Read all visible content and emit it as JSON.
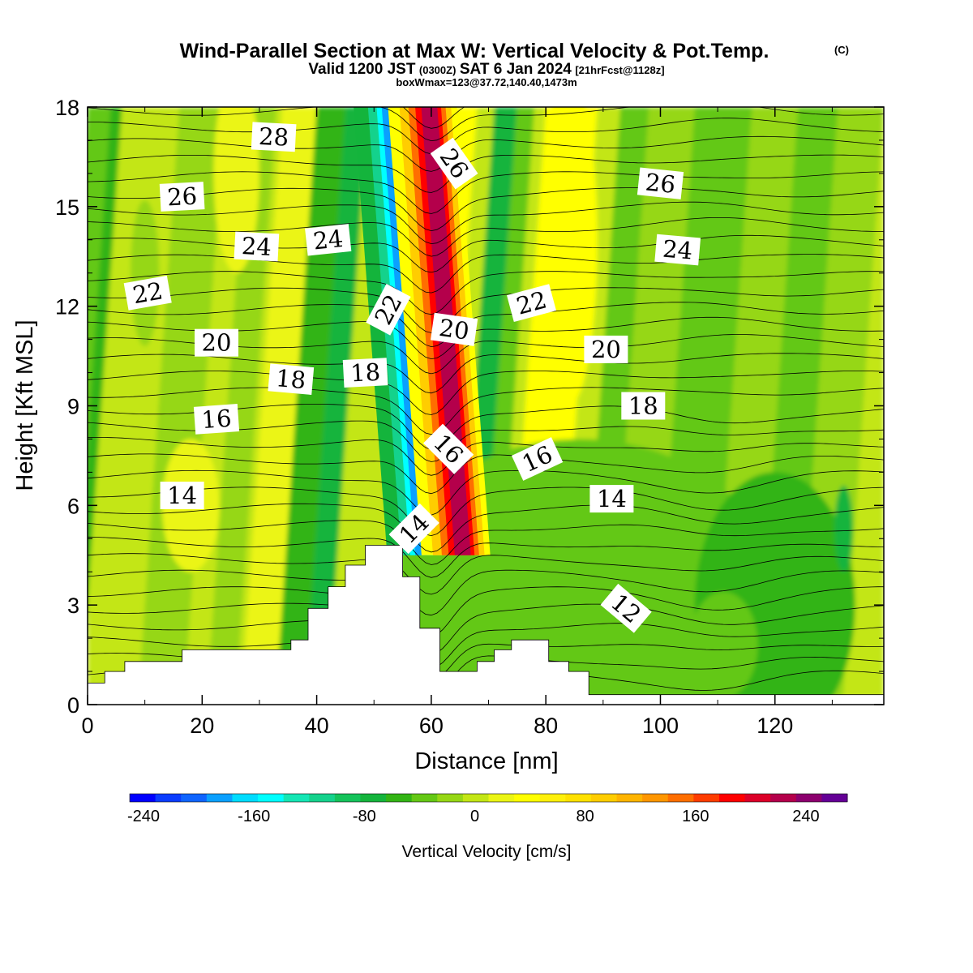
{
  "header": {
    "title": "Wind-Parallel Section at Max W: Vertical Velocity & Pot.Temp.",
    "copyright": "(C)",
    "valid_prefix": "Valid 1200 JST",
    "valid_utc": "(0300Z)",
    "valid_date": "SAT 6 Jan 2024",
    "forecast": "[21hrFcst@1128z]",
    "boxinfo": "boxWmax=123@37.72,140.40,1473m"
  },
  "colorbar": {
    "label": "Vertical Velocity [cm/s]",
    "tick_labels": [
      "-240",
      "-160",
      "-80",
      "0",
      "80",
      "160",
      "240"
    ],
    "tick_values": [
      -240,
      -160,
      -80,
      0,
      80,
      160,
      240
    ],
    "min": -250,
    "max": 270,
    "step": 20,
    "colors": [
      "#0000ff",
      "#0a3cff",
      "#0f64ff",
      "#0aa0ff",
      "#00dcff",
      "#00ffff",
      "#14e6b4",
      "#14d28c",
      "#14c35a",
      "#14b43c",
      "#32b414",
      "#64c814",
      "#96d714",
      "#c3e614",
      "#ebf514",
      "#ffff00",
      "#fff00a",
      "#ffe100",
      "#ffcd00",
      "#ffb400",
      "#ff9600",
      "#ff6e00",
      "#ff3c00",
      "#ff0000",
      "#dc0028",
      "#b4004b",
      "#8c006e",
      "#640096"
    ]
  },
  "chart_data": {
    "type": "heatmap",
    "title": "Wind-Parallel Section at Max W: Vertical Velocity & Pot.Temp.",
    "xlabel": "Distance [nm]",
    "ylabel": "Height [Kft MSL]",
    "xlim": [
      0,
      139
    ],
    "ylim": [
      0,
      18
    ],
    "x_ticks": [
      0,
      20,
      40,
      60,
      80,
      100,
      120
    ],
    "y_ticks": [
      0,
      3,
      6,
      9,
      12,
      15,
      18
    ],
    "shading_variable": "Vertical Velocity [cm/s]",
    "contour_variable": "Potential temperature",
    "vertical_velocity_features": [
      {
        "kind": "downdraft",
        "center_x": 55,
        "min_value": -180
      },
      {
        "kind": "updraft",
        "center_x": 62,
        "max_value": 250
      },
      {
        "kind": "updraft",
        "center_x": 66,
        "max_value": 60
      },
      {
        "kind": "downdraft",
        "center_x": 73,
        "min_value": -60
      },
      {
        "kind": "updraft",
        "center_x": 85,
        "max_value": 60
      }
    ],
    "contour_labels": [
      {
        "text": "28",
        "x": 32.5,
        "y": 17.1,
        "angle": -3
      },
      {
        "text": "26",
        "x": 16.5,
        "y": 15.3,
        "angle": 3
      },
      {
        "text": "26",
        "x": 64,
        "y": 16.3,
        "angle": -55
      },
      {
        "text": "26",
        "x": 100,
        "y": 15.7,
        "angle": -6
      },
      {
        "text": "24",
        "x": 29.5,
        "y": 13.8,
        "angle": -3
      },
      {
        "text": "24",
        "x": 42,
        "y": 14.0,
        "angle": 6
      },
      {
        "text": "24",
        "x": 103,
        "y": 13.7,
        "angle": -5
      },
      {
        "text": "22",
        "x": 10.5,
        "y": 12.4,
        "angle": 10
      },
      {
        "text": "22",
        "x": 52.5,
        "y": 11.9,
        "angle": 62
      },
      {
        "text": "22",
        "x": 77.5,
        "y": 12.1,
        "angle": 15
      },
      {
        "text": "20",
        "x": 22.5,
        "y": 10.9,
        "angle": 0
      },
      {
        "text": "20",
        "x": 64,
        "y": 11.3,
        "angle": -8
      },
      {
        "text": "20",
        "x": 90.5,
        "y": 10.7,
        "angle": 0
      },
      {
        "text": "18",
        "x": 35.5,
        "y": 9.8,
        "angle": -5
      },
      {
        "text": "18",
        "x": 48.5,
        "y": 10.0,
        "angle": 3
      },
      {
        "text": "18",
        "x": 97,
        "y": 9.0,
        "angle": 0
      },
      {
        "text": "16",
        "x": 22.5,
        "y": 8.6,
        "angle": 4
      },
      {
        "text": "16",
        "x": 63,
        "y": 7.7,
        "angle": -45
      },
      {
        "text": "16",
        "x": 78.5,
        "y": 7.4,
        "angle": 25
      },
      {
        "text": "14",
        "x": 16.5,
        "y": 6.3,
        "angle": 0
      },
      {
        "text": "14",
        "x": 57,
        "y": 5.3,
        "angle": 45
      },
      {
        "text": "14",
        "x": 91.5,
        "y": 6.2,
        "angle": 0
      },
      {
        "text": "12",
        "x": 94,
        "y": 2.9,
        "angle": -40
      }
    ],
    "terrain": [
      [
        0,
        0.65
      ],
      [
        3,
        0.65
      ],
      [
        3,
        1.0
      ],
      [
        6.5,
        1.0
      ],
      [
        6.5,
        1.3
      ],
      [
        16.5,
        1.3
      ],
      [
        16.5,
        1.65
      ],
      [
        35.5,
        1.65
      ],
      [
        35.5,
        1.95
      ],
      [
        38.5,
        1.95
      ],
      [
        38.5,
        2.9
      ],
      [
        42,
        2.9
      ],
      [
        42,
        3.55
      ],
      [
        45,
        3.55
      ],
      [
        45,
        4.2
      ],
      [
        48.5,
        4.2
      ],
      [
        48.5,
        4.8
      ],
      [
        55,
        4.8
      ],
      [
        55,
        3.85
      ],
      [
        58,
        3.85
      ],
      [
        58,
        2.3
      ],
      [
        61.5,
        2.3
      ],
      [
        61.5,
        1.0
      ],
      [
        68,
        1.0
      ],
      [
        68,
        1.3
      ],
      [
        71,
        1.3
      ],
      [
        71,
        1.65
      ],
      [
        74,
        1.65
      ],
      [
        74,
        1.95
      ],
      [
        80.5,
        1.95
      ],
      [
        80.5,
        1.3
      ],
      [
        84,
        1.3
      ],
      [
        84,
        1.0
      ],
      [
        87.5,
        1.0
      ],
      [
        87.5,
        0.3
      ],
      [
        139,
        0.3
      ]
    ]
  }
}
